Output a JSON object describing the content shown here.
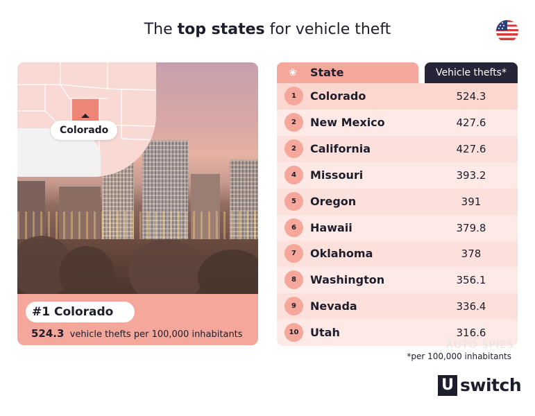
{
  "title": {
    "prefix": "The ",
    "bold": "top states",
    "suffix": " for vehicle theft"
  },
  "flag_icon": "us-flag-icon",
  "featured": {
    "map_label": "Colorado",
    "rank_label": "#1 Colorado",
    "value": "524.3",
    "value_text": "vehicle thefts per 100,000 inhabitants"
  },
  "table": {
    "header_icon": "ribbon-award-icon",
    "col_state": "State",
    "col_value": "Vehicle thefts*",
    "rows": [
      {
        "rank": "1",
        "state": "Colorado",
        "value": "524.3"
      },
      {
        "rank": "2",
        "state": "New Mexico",
        "value": "427.6"
      },
      {
        "rank": "2",
        "state": "California",
        "value": "427.6"
      },
      {
        "rank": "4",
        "state": "Missouri",
        "value": "393.2"
      },
      {
        "rank": "5",
        "state": "Oregon",
        "value": "391"
      },
      {
        "rank": "6",
        "state": "Hawaii",
        "value": "379.8"
      },
      {
        "rank": "7",
        "state": "Oklahoma",
        "value": "378"
      },
      {
        "rank": "8",
        "state": "Washington",
        "value": "356.1"
      },
      {
        "rank": "9",
        "state": "Nevada",
        "value": "336.4"
      },
      {
        "rank": "10",
        "state": "Utah",
        "value": "316.6"
      }
    ]
  },
  "footnote": "*per 100,000 inhabitants",
  "brand": {
    "mark": "U",
    "word": "switch"
  },
  "watermark": "AUTO SPIES",
  "colors": {
    "accent": "#f4a79a",
    "dark": "#252537",
    "row": "#fbe0db"
  }
}
